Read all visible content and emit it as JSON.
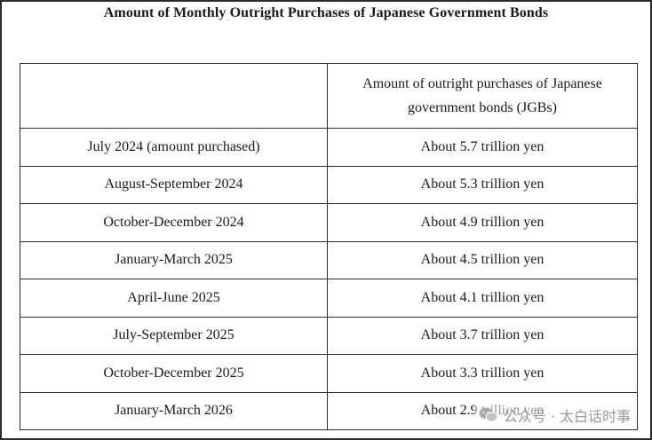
{
  "title": "Amount of Monthly Outright Purchases of Japanese Government Bonds",
  "table": {
    "header": {
      "col1": "",
      "col2": "Amount of outright purchases of Japanese government bonds (JGBs)"
    },
    "rows": [
      {
        "period": "July 2024 (amount purchased)",
        "amount": "About 5.7 trillion yen"
      },
      {
        "period": "August-September 2024",
        "amount": "About 5.3 trillion yen"
      },
      {
        "period": "October-December 2024",
        "amount": "About 4.9 trillion yen"
      },
      {
        "period": "January-March 2025",
        "amount": "About 4.5 trillion yen"
      },
      {
        "period": "April-June 2025",
        "amount": "About 4.1 trillion yen"
      },
      {
        "period": "July-September 2025",
        "amount": "About 3.7 trillion yen"
      },
      {
        "period": "October-December 2025",
        "amount": "About 3.3 trillion yen"
      },
      {
        "period": "January-March 2026",
        "amount": "About 2.9 trillion yen"
      }
    ]
  },
  "watermark": {
    "icon": "wechat-icon",
    "text": "公众号 · 太白话时事"
  }
}
